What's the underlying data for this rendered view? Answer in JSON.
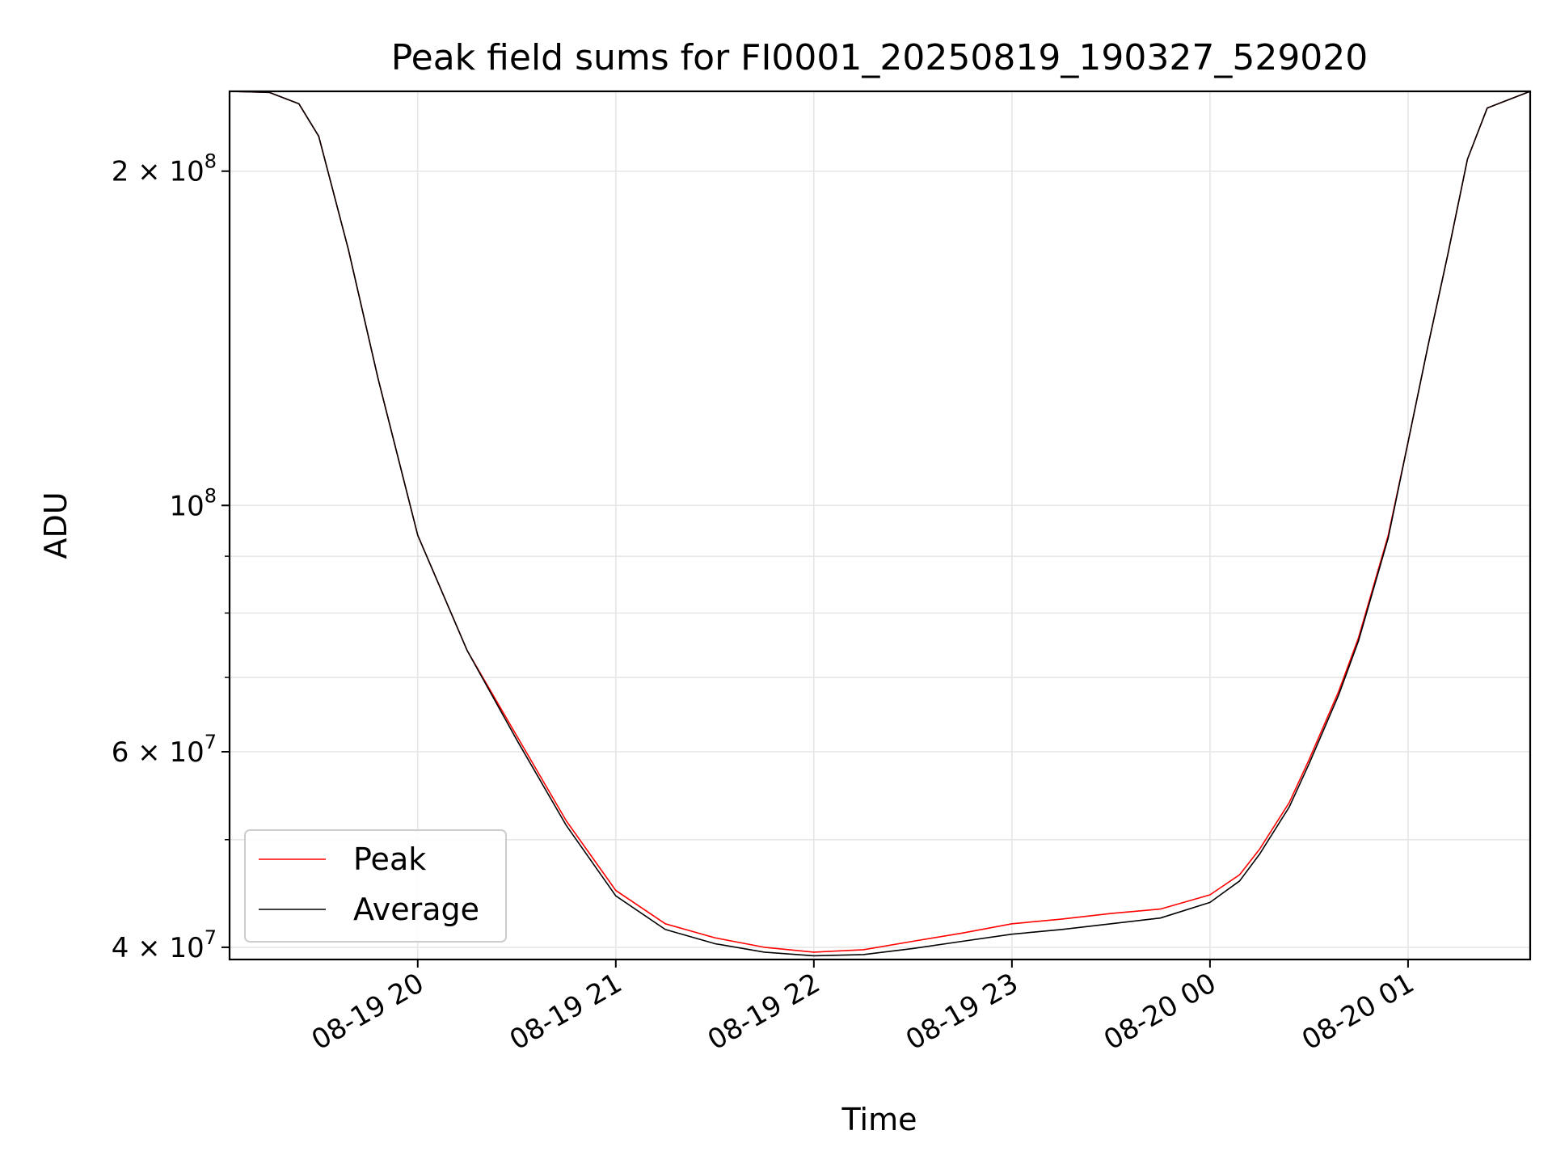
{
  "chart_data": {
    "type": "line",
    "title": "Peak field sums for FI0001_20250819_190327_529020",
    "xlabel": "Time",
    "ylabel": "ADU",
    "yscale": "log",
    "ylim": [
      39000000,
      236000000
    ],
    "xlim": [
      "2025-08-19 19:03",
      "2025-08-20 01:37"
    ],
    "grid": true,
    "legend_position": "lower-left",
    "x_ticks": [
      {
        "time": "2025-08-19 20:00",
        "label": "08-19 20"
      },
      {
        "time": "2025-08-19 21:00",
        "label": "08-19 21"
      },
      {
        "time": "2025-08-19 22:00",
        "label": "08-19 22"
      },
      {
        "time": "2025-08-19 23:00",
        "label": "08-19 23"
      },
      {
        "time": "2025-08-20 00:00",
        "label": "08-20 00"
      },
      {
        "time": "2025-08-20 01:00",
        "label": "08-20 01"
      }
    ],
    "y_major_ticks": [
      {
        "value": 40000000,
        "label_base": "4 × 10",
        "label_exp": "7"
      },
      {
        "value": 60000000,
        "label_base": "6 × 10",
        "label_exp": "7"
      },
      {
        "value": 100000000,
        "label_base": "10",
        "label_exp": "8"
      },
      {
        "value": 200000000,
        "label_base": "2 × 10",
        "label_exp": "8"
      }
    ],
    "y_minor_ticks": [
      50000000,
      70000000,
      80000000,
      90000000
    ],
    "x": [
      "2025-08-19 19:03",
      "2025-08-19 19:15",
      "2025-08-19 19:24",
      "2025-08-19 19:30",
      "2025-08-19 19:39",
      "2025-08-19 19:48",
      "2025-08-19 20:00",
      "2025-08-19 20:15",
      "2025-08-19 20:30",
      "2025-08-19 20:45",
      "2025-08-19 21:00",
      "2025-08-19 21:15",
      "2025-08-19 21:30",
      "2025-08-19 21:45",
      "2025-08-19 22:00",
      "2025-08-19 22:15",
      "2025-08-19 22:30",
      "2025-08-19 22:45",
      "2025-08-19 23:00",
      "2025-08-19 23:15",
      "2025-08-19 23:30",
      "2025-08-19 23:45",
      "2025-08-20 00:00",
      "2025-08-20 00:09",
      "2025-08-20 00:15",
      "2025-08-20 00:24",
      "2025-08-20 00:30",
      "2025-08-20 00:39",
      "2025-08-20 00:45",
      "2025-08-20 00:54",
      "2025-08-20 01:00",
      "2025-08-20 01:06",
      "2025-08-20 01:12",
      "2025-08-20 01:18",
      "2025-08-20 01:24",
      "2025-08-20 01:37"
    ],
    "series": [
      {
        "name": "Peak",
        "color": "#ff0000",
        "values": [
          236000000,
          235500000,
          230000000,
          215000000,
          170000000,
          130000000,
          94000000,
          74000000,
          62000000,
          52000000,
          45000000,
          42000000,
          40800000,
          40000000,
          39600000,
          39800000,
          40500000,
          41200000,
          42000000,
          42400000,
          42900000,
          43300000,
          44600000,
          46500000,
          49000000,
          54000000,
          59000000,
          68000000,
          76000000,
          94000000,
          114000000,
          139000000,
          168000000,
          205000000,
          228000000,
          236000000
        ]
      },
      {
        "name": "Average",
        "color": "#000000",
        "values": [
          236000000,
          235500000,
          230000000,
          215000000,
          170000000,
          130000000,
          94000000,
          74000000,
          61500000,
          51500000,
          44500000,
          41500000,
          40300000,
          39600000,
          39300000,
          39400000,
          39900000,
          40500000,
          41100000,
          41500000,
          42000000,
          42500000,
          43900000,
          45900000,
          48500000,
          53500000,
          58500000,
          67500000,
          75500000,
          93500000,
          114000000,
          139000000,
          168000000,
          205000000,
          228000000,
          236000000
        ]
      }
    ]
  }
}
